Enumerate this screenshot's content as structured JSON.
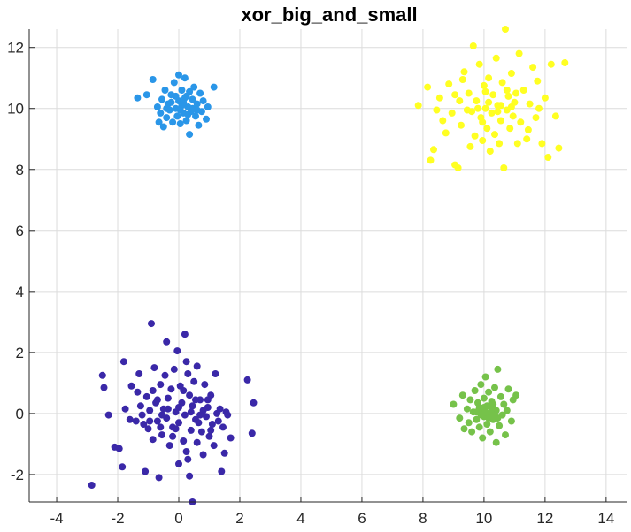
{
  "chart_data": {
    "type": "scatter",
    "title": "xor_big_and_small",
    "xlabel": "",
    "ylabel": "",
    "xlim": [
      -4.9,
      14.7
    ],
    "ylim": [
      -2.9,
      12.6
    ],
    "xticks": [
      -4,
      -2,
      0,
      2,
      4,
      6,
      8,
      10,
      12,
      14
    ],
    "yticks": [
      -2,
      0,
      2,
      4,
      6,
      8,
      10,
      12
    ],
    "grid": true,
    "series": [
      {
        "color": "#3a28a8",
        "points": [
          [
            -2.85,
            -2.35
          ],
          [
            -2.5,
            1.25
          ],
          [
            -2.45,
            0.85
          ],
          [
            -2.3,
            -0.05
          ],
          [
            -2.1,
            -1.1
          ],
          [
            -1.95,
            -1.15
          ],
          [
            -1.85,
            -1.75
          ],
          [
            -1.8,
            1.7
          ],
          [
            -1.75,
            0.15
          ],
          [
            -1.6,
            -0.2
          ],
          [
            -1.55,
            0.9
          ],
          [
            -1.4,
            -0.25
          ],
          [
            -1.3,
            1.3
          ],
          [
            -1.25,
            0.25
          ],
          [
            -1.15,
            -0.35
          ],
          [
            -1.1,
            -1.9
          ],
          [
            -1.05,
            0.55
          ],
          [
            -1.0,
            -0.5
          ],
          [
            -0.95,
            0.1
          ],
          [
            -0.9,
            2.95
          ],
          [
            -0.85,
            -0.85
          ],
          [
            -0.8,
            1.5
          ],
          [
            -0.75,
            0.35
          ],
          [
            -0.7,
            -0.25
          ],
          [
            -0.65,
            -2.1
          ],
          [
            -0.6,
            0.95
          ],
          [
            -0.55,
            -0.7
          ],
          [
            -0.5,
            0.15
          ],
          [
            -0.45,
            1.25
          ],
          [
            -0.4,
            -0.15
          ],
          [
            -0.4,
            2.35
          ],
          [
            -0.35,
            0.5
          ],
          [
            -0.3,
            -1.05
          ],
          [
            -0.25,
            0.8
          ],
          [
            -0.2,
            -0.45
          ],
          [
            -0.15,
            1.45
          ],
          [
            -0.1,
            0.05
          ],
          [
            -0.05,
            2.05
          ],
          [
            0.0,
            -0.3
          ],
          [
            0.0,
            -1.65
          ],
          [
            0.05,
            0.9
          ],
          [
            0.1,
            0.35
          ],
          [
            0.15,
            -0.9
          ],
          [
            0.2,
            2.6
          ],
          [
            0.2,
            -0.05
          ],
          [
            0.25,
            1.7
          ],
          [
            0.3,
            -1.5
          ],
          [
            0.35,
            0.6
          ],
          [
            0.35,
            -2.05
          ],
          [
            0.4,
            -0.55
          ],
          [
            0.45,
            0.25
          ],
          [
            0.45,
            -2.9
          ],
          [
            0.5,
            1.05
          ],
          [
            0.55,
            -0.2
          ],
          [
            0.6,
            1.55
          ],
          [
            0.6,
            -0.95
          ],
          [
            0.7,
            0.45
          ],
          [
            0.75,
            -0.6
          ],
          [
            0.8,
            -1.35
          ],
          [
            0.85,
            0.95
          ],
          [
            0.9,
            -0.1
          ],
          [
            0.95,
            0.2
          ],
          [
            1.0,
            -0.75
          ],
          [
            1.05,
            0.6
          ],
          [
            1.1,
            -0.35
          ],
          [
            1.15,
            -1.05
          ],
          [
            1.2,
            1.3
          ],
          [
            1.25,
            0.0
          ],
          [
            1.3,
            -0.25
          ],
          [
            1.35,
            0.15
          ],
          [
            1.4,
            -1.9
          ],
          [
            1.45,
            -0.45
          ],
          [
            1.5,
            -1.3
          ],
          [
            1.55,
            0.05
          ],
          [
            1.6,
            -0.05
          ],
          [
            1.7,
            -0.8
          ],
          [
            2.25,
            1.1
          ],
          [
            2.4,
            -0.65
          ],
          [
            2.45,
            0.35
          ],
          [
            -1.35,
            0.7
          ],
          [
            -0.95,
            -0.25
          ],
          [
            -0.7,
            0.45
          ],
          [
            -0.2,
            -0.75
          ],
          [
            0.15,
            0.75
          ],
          [
            0.4,
            0.05
          ],
          [
            0.65,
            -0.3
          ],
          [
            -0.55,
            -0.05
          ],
          [
            0.95,
            0.45
          ],
          [
            -1.2,
            -0.05
          ],
          [
            0.0,
            0.2
          ],
          [
            0.25,
            -1.25
          ],
          [
            -0.1,
            -0.5
          ],
          [
            0.55,
            0.45
          ],
          [
            -0.35,
            0.15
          ],
          [
            0.8,
            0.1
          ],
          [
            1.05,
            -0.55
          ],
          [
            -0.6,
            -0.45
          ],
          [
            0.3,
            1.3
          ],
          [
            -0.85,
            0.75
          ],
          [
            0.7,
            -0.05
          ]
        ]
      },
      {
        "color": "#2a96e8",
        "points": [
          [
            -1.35,
            10.35
          ],
          [
            -1.05,
            10.45
          ],
          [
            -0.85,
            10.95
          ],
          [
            -0.7,
            10.05
          ],
          [
            -0.65,
            9.55
          ],
          [
            -0.6,
            9.85
          ],
          [
            -0.55,
            10.3
          ],
          [
            -0.5,
            9.4
          ],
          [
            -0.45,
            10.6
          ],
          [
            -0.4,
            9.7
          ],
          [
            -0.35,
            10.15
          ],
          [
            -0.3,
            9.95
          ],
          [
            -0.25,
            10.45
          ],
          [
            -0.2,
            9.55
          ],
          [
            -0.15,
            10.85
          ],
          [
            -0.1,
            10.0
          ],
          [
            -0.05,
            9.75
          ],
          [
            0.0,
            10.25
          ],
          [
            0.0,
            11.1
          ],
          [
            0.05,
            9.5
          ],
          [
            0.1,
            10.1
          ],
          [
            0.1,
            10.6
          ],
          [
            0.15,
            9.85
          ],
          [
            0.2,
            10.35
          ],
          [
            0.2,
            11.0
          ],
          [
            0.25,
            9.6
          ],
          [
            0.3,
            10.05
          ],
          [
            0.35,
            10.55
          ],
          [
            0.35,
            9.15
          ],
          [
            0.4,
            9.9
          ],
          [
            0.45,
            10.3
          ],
          [
            0.5,
            10.7
          ],
          [
            0.55,
            9.75
          ],
          [
            0.6,
            10.15
          ],
          [
            0.65,
            9.45
          ],
          [
            0.7,
            10.5
          ],
          [
            0.75,
            9.9
          ],
          [
            0.8,
            10.25
          ],
          [
            0.9,
            9.65
          ],
          [
            0.95,
            10.05
          ],
          [
            1.15,
            10.7
          ],
          [
            -0.25,
            10.2
          ],
          [
            0.05,
            9.95
          ],
          [
            0.3,
            9.8
          ],
          [
            -0.1,
            10.4
          ],
          [
            0.15,
            10.2
          ],
          [
            0.45,
            10.0
          ],
          [
            -0.4,
            10.0
          ],
          [
            0.25,
            10.4
          ],
          [
            0.6,
            9.95
          ]
        ]
      },
      {
        "color": "#ffff22",
        "points": [
          [
            7.85,
            10.1
          ],
          [
            8.15,
            10.7
          ],
          [
            8.25,
            8.3
          ],
          [
            8.35,
            8.65
          ],
          [
            8.45,
            9.95
          ],
          [
            8.55,
            10.35
          ],
          [
            8.65,
            9.6
          ],
          [
            8.75,
            9.2
          ],
          [
            8.85,
            10.8
          ],
          [
            8.95,
            9.85
          ],
          [
            9.05,
            8.15
          ],
          [
            9.05,
            10.45
          ],
          [
            9.15,
            8.05
          ],
          [
            9.25,
            9.45
          ],
          [
            9.35,
            11.2
          ],
          [
            9.45,
            9.95
          ],
          [
            9.5,
            10.5
          ],
          [
            9.55,
            8.75
          ],
          [
            9.65,
            12.05
          ],
          [
            9.7,
            9.1
          ],
          [
            9.75,
            10.25
          ],
          [
            9.85,
            11.45
          ],
          [
            9.9,
            9.7
          ],
          [
            9.95,
            8.95
          ],
          [
            10.0,
            10.75
          ],
          [
            10.05,
            10.0
          ],
          [
            10.1,
            9.35
          ],
          [
            10.15,
            11.0
          ],
          [
            10.2,
            8.6
          ],
          [
            10.25,
            9.85
          ],
          [
            10.3,
            10.45
          ],
          [
            10.35,
            9.15
          ],
          [
            10.4,
            11.65
          ],
          [
            10.45,
            10.1
          ],
          [
            10.5,
            8.85
          ],
          [
            10.55,
            9.6
          ],
          [
            10.6,
            10.85
          ],
          [
            10.65,
            8.05
          ],
          [
            10.7,
            12.6
          ],
          [
            10.75,
            9.95
          ],
          [
            10.8,
            10.4
          ],
          [
            10.85,
            9.35
          ],
          [
            10.9,
            11.15
          ],
          [
            10.95,
            9.75
          ],
          [
            11.0,
            10.2
          ],
          [
            11.1,
            8.85
          ],
          [
            11.15,
            11.8
          ],
          [
            11.2,
            9.55
          ],
          [
            11.3,
            10.6
          ],
          [
            11.4,
            9.0
          ],
          [
            11.5,
            10.15
          ],
          [
            11.6,
            11.35
          ],
          [
            11.7,
            9.7
          ],
          [
            11.8,
            10.0
          ],
          [
            11.9,
            8.85
          ],
          [
            12.0,
            10.35
          ],
          [
            12.1,
            8.4
          ],
          [
            12.2,
            11.45
          ],
          [
            12.35,
            9.75
          ],
          [
            12.45,
            8.7
          ],
          [
            12.65,
            11.5
          ],
          [
            9.3,
            10.95
          ],
          [
            9.8,
            10.0
          ],
          [
            10.45,
            9.9
          ],
          [
            10.15,
            10.2
          ],
          [
            11.05,
            10.5
          ],
          [
            9.6,
            9.9
          ],
          [
            10.75,
            10.6
          ],
          [
            9.95,
            9.55
          ],
          [
            10.55,
            10.1
          ],
          [
            11.45,
            9.3
          ],
          [
            9.2,
            10.25
          ],
          [
            10.9,
            10.05
          ],
          [
            10.05,
            10.55
          ],
          [
            11.75,
            10.9
          ]
        ]
      },
      {
        "color": "#76c24a",
        "points": [
          [
            9.0,
            0.3
          ],
          [
            9.2,
            -0.15
          ],
          [
            9.3,
            0.6
          ],
          [
            9.35,
            -0.5
          ],
          [
            9.45,
            0.15
          ],
          [
            9.5,
            -0.3
          ],
          [
            9.55,
            0.45
          ],
          [
            9.6,
            -0.6
          ],
          [
            9.65,
            0.05
          ],
          [
            9.7,
            0.75
          ],
          [
            9.75,
            -0.2
          ],
          [
            9.8,
            0.35
          ],
          [
            9.85,
            -0.45
          ],
          [
            9.9,
            0.95
          ],
          [
            9.95,
            0.1
          ],
          [
            9.95,
            -0.8
          ],
          [
            10.0,
            0.5
          ],
          [
            10.0,
            -0.1
          ],
          [
            10.05,
            1.2
          ],
          [
            10.1,
            0.25
          ],
          [
            10.1,
            -0.35
          ],
          [
            10.15,
            0.7
          ],
          [
            10.2,
            0.0
          ],
          [
            10.2,
            -0.6
          ],
          [
            10.25,
            0.4
          ],
          [
            10.3,
            -0.2
          ],
          [
            10.35,
            0.85
          ],
          [
            10.4,
            0.1
          ],
          [
            10.4,
            -0.95
          ],
          [
            10.45,
            1.45
          ],
          [
            10.5,
            -0.4
          ],
          [
            10.55,
            0.55
          ],
          [
            10.6,
            -0.05
          ],
          [
            10.65,
            0.3
          ],
          [
            10.7,
            -0.7
          ],
          [
            10.75,
            0.1
          ],
          [
            10.8,
            0.8
          ],
          [
            10.9,
            -0.25
          ],
          [
            10.95,
            0.45
          ],
          [
            11.05,
            0.6
          ],
          [
            9.85,
            0.2
          ],
          [
            9.9,
            -0.05
          ],
          [
            10.0,
            0.2
          ],
          [
            10.15,
            -0.15
          ],
          [
            10.25,
            0.15
          ],
          [
            10.35,
            -0.05
          ],
          [
            10.05,
            0.05
          ],
          [
            10.3,
            0.3
          ],
          [
            9.75,
            0.05
          ],
          [
            10.45,
            -0.15
          ]
        ]
      }
    ]
  }
}
